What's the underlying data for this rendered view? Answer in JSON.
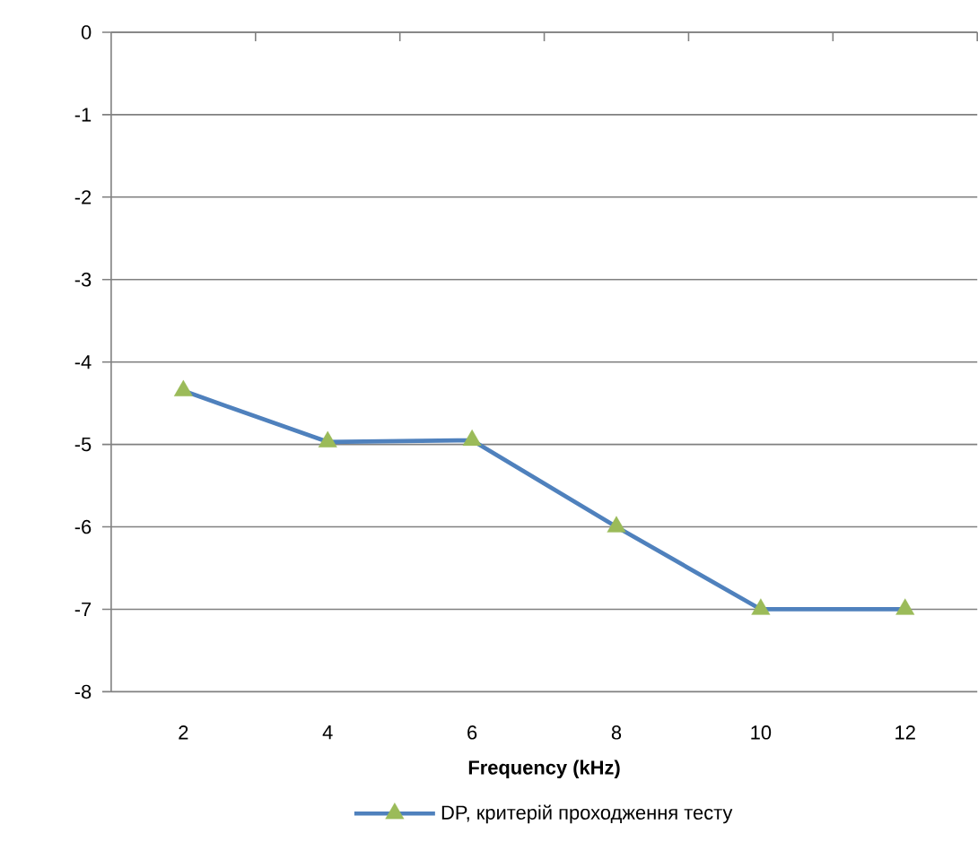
{
  "chart_data": {
    "type": "line",
    "xlabel": "**Frequency (kHz)**",
    "categories": [
      "2",
      "4",
      "6",
      "8",
      "10",
      "12"
    ],
    "series": [
      {
        "name": "DP, критерій проходження тесту",
        "color": "#4f81bd",
        "colors": [
          "#9bbb59",
          "#9bbb59",
          "#9bbb59",
          "#9bbb59",
          "#9bbb59",
          "#9bbb59"
        ],
        "values": [
          -4.35,
          -4.97,
          -4.95,
          -6.0,
          -7.0,
          -7.0
        ]
      }
    ],
    "ylim": [
      -8,
      0
    ],
    "yticks": [
      -8,
      -7,
      -6,
      -5,
      -4,
      -3,
      -2,
      -1,
      0
    ],
    "grid": "y",
    "legend": "bottom",
    "marker": "triangle",
    "line_style": "solid"
  }
}
